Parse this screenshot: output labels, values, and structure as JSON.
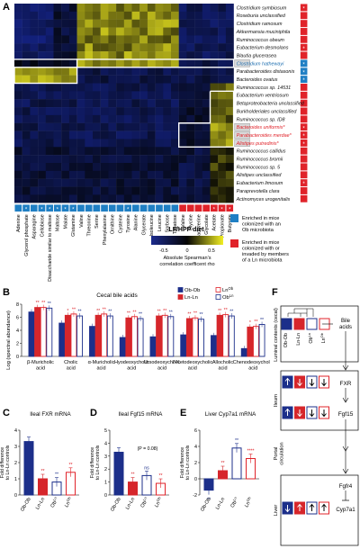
{
  "panel_labels": {
    "A": "A",
    "B": "B",
    "C": "C",
    "D": "D",
    "E": "E",
    "F": "F"
  },
  "heatmap": {
    "rows": [
      {
        "name": "Clostridium symbiosum",
        "hl": "none"
      },
      {
        "name": "Roseburia unclassified",
        "hl": "none"
      },
      {
        "name": "Clostridium ramosum",
        "hl": "none"
      },
      {
        "name": "Akkermansia muciniphila",
        "hl": "none"
      },
      {
        "name": "Ruminococcus obeum",
        "hl": "none"
      },
      {
        "name": "Eubacterium desmolans",
        "hl": "none"
      },
      {
        "name": "Blautia glucerasea",
        "hl": "none"
      },
      {
        "name": "Clostridium hathewayi",
        "hl": "blue"
      },
      {
        "name": "Parabacteroides distasonis",
        "hl": "none"
      },
      {
        "name": "Bacteroides ovatus",
        "hl": "none"
      },
      {
        "name": "Ruminococcus sp. 14531",
        "hl": "none"
      },
      {
        "name": "Eubacterium ventriosum",
        "hl": "none"
      },
      {
        "name": "Betaproteobacteria unclassified",
        "hl": "none"
      },
      {
        "name": "Burkholderiales unclassified",
        "hl": "none"
      },
      {
        "name": "Ruminococcus sp. ID8",
        "hl": "none"
      },
      {
        "name": "Bacteroides uniformis*",
        "hl": "red"
      },
      {
        "name": "Parabacteroides merdae*",
        "hl": "red"
      },
      {
        "name": "Alistipes putredinis*",
        "hl": "red"
      },
      {
        "name": "Ruminococcus callidus",
        "hl": "none"
      },
      {
        "name": "Ruminococcus bromii",
        "hl": "none"
      },
      {
        "name": "Ruminococcus sp. 5",
        "hl": "none"
      },
      {
        "name": "Alistipes unclassified",
        "hl": "none"
      },
      {
        "name": "Eubacterium limosum",
        "hl": "none"
      },
      {
        "name": "Paraprevotella clara",
        "hl": "none"
      },
      {
        "name": "Actinomyces urogenitalis",
        "hl": "none"
      }
    ],
    "columns": [
      "Adenine",
      "Glycerol phosphate",
      "Asparagine",
      "Cellobiose",
      "Disaccharide similar to maltose",
      "Maltose",
      "Malate",
      "Glutamine",
      "Valine",
      "Threonine",
      "Serine",
      "Phenylalanine",
      "Ornithine",
      "Cysteine",
      "Tyrosine",
      "Alanine",
      "Glycerate",
      "Isoleucine",
      "Leucine",
      "Sorbose",
      "Tagatose",
      "Valine",
      "Glycine",
      "Cadaverine",
      "Glycolate",
      "Acetate",
      "Propionate",
      "Butyrate"
    ],
    "col_colors": [
      "blue",
      "blue",
      "blue",
      "blue",
      "blue",
      "blue",
      "blue",
      "blue",
      "blue",
      "blue",
      "blue",
      "blue",
      "blue",
      "blue",
      "blue",
      "blue",
      "blue",
      "blue",
      "blue",
      "blue",
      "blue",
      "red",
      "red",
      "red",
      "red",
      "red",
      "red",
      "red"
    ],
    "col_stars": [
      0,
      1,
      0,
      1,
      1,
      1,
      1,
      1,
      0,
      0,
      0,
      0,
      0,
      0,
      1,
      0,
      0,
      0,
      0,
      0,
      0,
      0,
      0,
      0,
      0,
      1,
      1,
      1
    ],
    "row_colors": [
      "red",
      "red",
      "red",
      "red",
      "red",
      "red",
      "red",
      "blue",
      "blue",
      "blue",
      "red",
      "red",
      "red",
      "red",
      "red",
      "red",
      "red",
      "red",
      "red",
      "red",
      "red",
      "red",
      "red",
      "red",
      "red"
    ],
    "row_stars": [
      1,
      0,
      0,
      0,
      0,
      1,
      0,
      1,
      1,
      1,
      0,
      0,
      0,
      0,
      0,
      1,
      1,
      1,
      0,
      0,
      0,
      0,
      1,
      0,
      0
    ],
    "diet_label": "LF/HPP diet",
    "scale_label": "Absolute Spearman's\ncorrelation coefficent rho",
    "scale_ticks": [
      "-0.5",
      "0",
      "0.5"
    ]
  },
  "legend": {
    "blue": "Enriched in mice colonized with an Ob microbiota",
    "red": "Enriched in mice colonized with or invaded by members of a Ln microbiota",
    "colors": {
      "blue": "#1f7fc4",
      "red": "#e0232a",
      "navy": "#1c2f8a",
      "red_bar": "#d6262b"
    }
  },
  "chart_data": [
    {
      "type": "bar",
      "title": "Cecal bile acids",
      "ylabel": "Log (spectral abundance)",
      "ylim": [
        0,
        8
      ],
      "yticks": [
        "0",
        "2",
        "4",
        "6",
        "8"
      ],
      "categories": [
        "β-Muricholic acid",
        "Cholic acid",
        "α-Muricholic acid",
        "Hyodeoxycholic acid",
        "Ursodeoxycholic acid",
        "7-Ketodeoxycholic acid",
        "Allocholic acid",
        "Chenodeoxycholic acid"
      ],
      "series": [
        {
          "name": "Ob-Ob",
          "values": [
            6.8,
            5.1,
            4.6,
            2.9,
            3.0,
            3.3,
            3.2,
            1.2
          ]
        },
        {
          "name": "Ln-Ln",
          "values": [
            7.5,
            6.3,
            6.3,
            5.9,
            6.2,
            5.8,
            6.3,
            4.5
          ]
        },
        {
          "name": "Ln^Ob",
          "values": [
            7.5,
            6.5,
            6.5,
            6.1,
            6.3,
            5.9,
            6.4,
            4.6
          ]
        },
        {
          "name": "Ob^Ln",
          "values": [
            7.4,
            6.2,
            6.2,
            5.8,
            6.1,
            5.7,
            6.2,
            4.9
          ]
        }
      ],
      "sig": [
        [
          "",
          "**",
          "**",
          "**"
        ],
        [
          "",
          "*",
          "**",
          "**"
        ],
        [
          "",
          "**",
          "**",
          "**"
        ],
        [
          "",
          "**",
          "**",
          "**"
        ],
        [
          "",
          "**",
          "**",
          "**"
        ],
        [
          "",
          "**",
          "**",
          "**"
        ],
        [
          "",
          "**",
          "**",
          "**"
        ],
        [
          "",
          "*",
          "**",
          "**"
        ]
      ],
      "legend": [
        "Ob-Ob",
        "Ln-Ln",
        "Ln^Ob",
        "Ob^Ln"
      ]
    },
    {
      "type": "bar",
      "title": "Ileal FXR mRNA",
      "ylabel": "Fold difference to Ln-Ln controls",
      "ylim": [
        0,
        4
      ],
      "yticks": [
        "0",
        "1",
        "2",
        "3",
        "4"
      ],
      "categories": [
        "Ob-Ob",
        "Ln-Ln",
        "Ob^Ln",
        "Ln^Ob"
      ],
      "values": [
        3.3,
        1.0,
        0.8,
        1.4
      ],
      "sig": [
        "",
        "**",
        "**",
        "**"
      ]
    },
    {
      "type": "bar",
      "title": "Ileal Fgf15 mRNA",
      "ylabel": "Fold difference to Ln-Ln controls",
      "ylim": [
        0,
        5
      ],
      "yticks": [
        "0",
        "1",
        "2",
        "3",
        "4",
        "5"
      ],
      "categories": [
        "Ob-Ob",
        "Ln-Ln",
        "Ob^Ln",
        "Ln^Ob"
      ],
      "values": [
        3.3,
        1.0,
        1.5,
        0.9
      ],
      "sig": [
        "",
        "**",
        "ns",
        "**"
      ],
      "annotation": "(P = 0.08)"
    },
    {
      "type": "bar",
      "title": "Liver Cyp7a1 mRNA",
      "ylabel": "Fold difference to Ln-Ln controls",
      "ylim": [
        -2,
        6
      ],
      "yticks": [
        "-2",
        "0",
        "2",
        "4",
        "6"
      ],
      "categories": [
        "Ob-Ob",
        "Ln-Ln",
        "Ob^Ln",
        "Ln^Ob"
      ],
      "values": [
        -1.4,
        1.0,
        3.8,
        2.5
      ],
      "sig": [
        "**",
        "**",
        "**",
        "****"
      ]
    }
  ],
  "pathway": {
    "luminal": "Luminal contents (cecal)",
    "bile": "Bile acids",
    "ileum": "Ileum",
    "portal": "Portal circulation",
    "liver": "Liver",
    "fxr": "FXR",
    "fgf15": "Fgf15",
    "fgfr4": "Fgfr4",
    "cyp": "Cyp7a1",
    "groups": [
      "Ob-Ob",
      "Ln-Ln",
      "Ob^Ln",
      "Ln^Ob"
    ]
  }
}
